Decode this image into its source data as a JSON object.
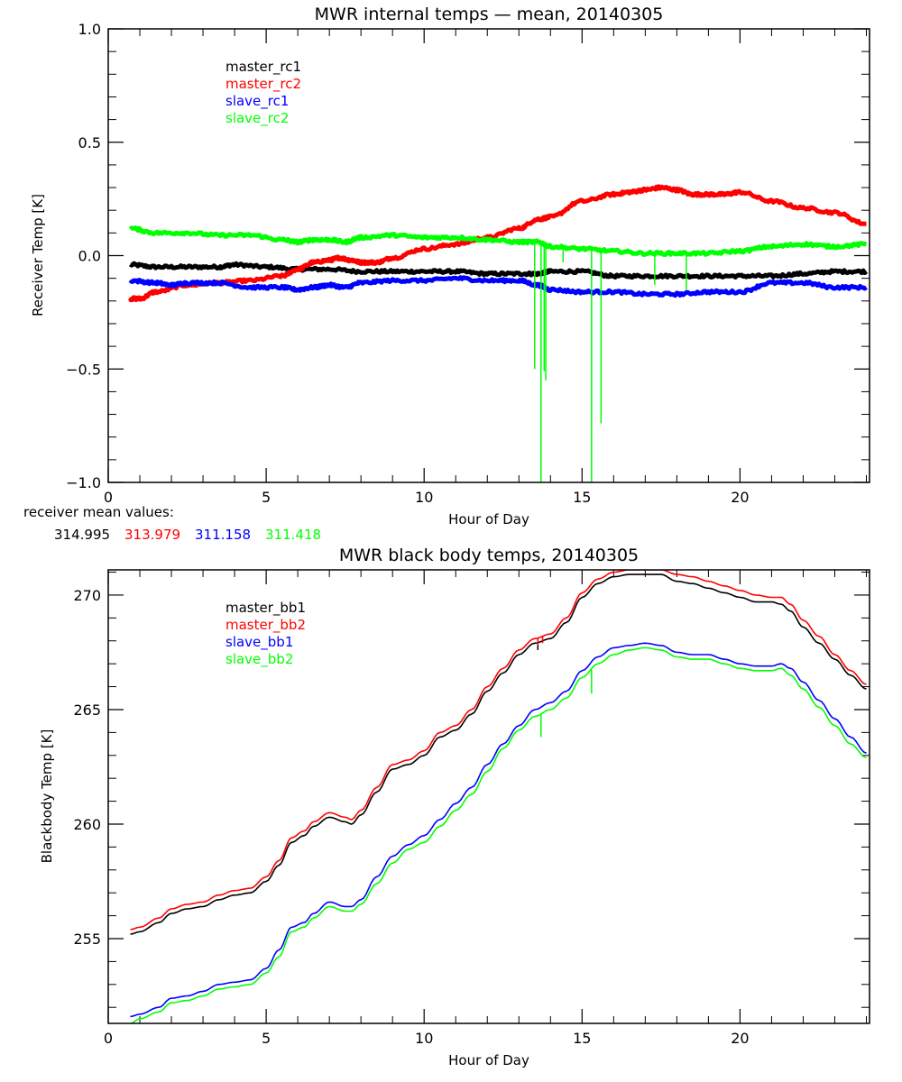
{
  "chart_data": [
    {
      "type": "line",
      "title": "MWR internal temps — mean, 20140305",
      "xlabel": "Hour of Day",
      "ylabel": "Receiver Temp [K]",
      "xlim": [
        0,
        24.1
      ],
      "ylim": [
        -1.0,
        1.0
      ],
      "xticks": [
        0,
        5,
        10,
        15,
        20
      ],
      "xtick_labels": [
        "0",
        "5",
        "10",
        "15",
        "20"
      ],
      "yticks": [
        -1.0,
        -0.5,
        0.0,
        0.5,
        1.0
      ],
      "ytick_labels": [
        "-1.0",
        "-0.5",
        "0.0",
        "0.5",
        "1.0"
      ],
      "x_minor_step": 1,
      "y_minor_step": 0.1,
      "grid": false,
      "legend_position": "top-left",
      "series": [
        {
          "name": "master_rc1",
          "color": "#000000",
          "x": [
            0.7,
            1.5,
            2.5,
            3.5,
            4.0,
            5.0,
            6.0,
            7.0,
            8.0,
            9.0,
            10.0,
            11.0,
            12.0,
            13.0,
            13.6,
            14.0,
            15.0,
            16.0,
            17.0,
            18.0,
            19.0,
            20.0,
            21.0,
            22.0,
            23.0,
            24.0
          ],
          "values": [
            -0.04,
            -0.05,
            -0.05,
            -0.05,
            -0.04,
            -0.05,
            -0.06,
            -0.06,
            -0.07,
            -0.07,
            -0.07,
            -0.07,
            -0.08,
            -0.08,
            -0.08,
            -0.07,
            -0.07,
            -0.09,
            -0.09,
            -0.09,
            -0.09,
            -0.09,
            -0.09,
            -0.08,
            -0.07,
            -0.07
          ]
        },
        {
          "name": "master_rc2",
          "color": "#ff0000",
          "x": [
            0.7,
            1.0,
            1.5,
            2.5,
            3.5,
            4.5,
            5.5,
            6.0,
            6.5,
            7.0,
            7.3,
            7.7,
            8.0,
            8.5,
            9.0,
            10.0,
            11.0,
            12.0,
            13.0,
            13.6,
            14.0,
            15.0,
            16.0,
            16.5,
            17.0,
            17.5,
            18.0,
            18.5,
            19.0,
            19.5,
            20.0,
            21.0,
            22.0,
            23.0,
            24.0
          ],
          "values": [
            -0.19,
            -0.19,
            -0.16,
            -0.13,
            -0.12,
            -0.11,
            -0.09,
            -0.06,
            -0.03,
            -0.02,
            -0.01,
            -0.02,
            -0.03,
            -0.03,
            -0.01,
            0.03,
            0.05,
            0.08,
            0.12,
            0.16,
            0.17,
            0.24,
            0.27,
            0.28,
            0.29,
            0.3,
            0.29,
            0.27,
            0.27,
            0.27,
            0.28,
            0.24,
            0.21,
            0.19,
            0.14
          ]
        },
        {
          "name": "slave_rc1",
          "color": "#0000ff",
          "x": [
            0.7,
            1.5,
            2.0,
            2.5,
            3.5,
            4.5,
            5.5,
            6.0,
            6.5,
            7.0,
            7.5,
            8.0,
            9.0,
            10.0,
            11.0,
            12.0,
            13.0,
            13.6,
            14.0,
            15.0,
            16.0,
            17.0,
            18.0,
            19.0,
            20.0,
            21.0,
            22.0,
            23.0,
            24.0
          ],
          "values": [
            -0.11,
            -0.12,
            -0.13,
            -0.12,
            -0.12,
            -0.14,
            -0.14,
            -0.15,
            -0.14,
            -0.13,
            -0.14,
            -0.12,
            -0.11,
            -0.11,
            -0.1,
            -0.11,
            -0.11,
            -0.13,
            -0.15,
            -0.16,
            -0.16,
            -0.17,
            -0.17,
            -0.16,
            -0.16,
            -0.12,
            -0.12,
            -0.14,
            -0.14
          ]
        },
        {
          "name": "slave_rc2",
          "color": "#00ff00",
          "x": [
            0.7,
            1.5,
            2.5,
            3.5,
            4.5,
            5.5,
            6.0,
            6.5,
            7.0,
            7.5,
            8.0,
            9.0,
            10.0,
            11.0,
            12.0,
            13.0,
            13.6,
            14.0,
            15.0,
            16.0,
            17.0,
            18.0,
            19.0,
            20.0,
            21.0,
            22.0,
            23.0,
            24.0
          ],
          "values": [
            0.12,
            0.1,
            0.1,
            0.09,
            0.09,
            0.07,
            0.06,
            0.07,
            0.07,
            0.06,
            0.08,
            0.09,
            0.08,
            0.08,
            0.07,
            0.06,
            0.06,
            0.04,
            0.03,
            0.02,
            0.01,
            0.01,
            0.01,
            0.02,
            0.04,
            0.05,
            0.04,
            0.05
          ],
          "spikes": [
            {
              "x": 13.5,
              "to": -0.5
            },
            {
              "x": 13.7,
              "to": -1.0
            },
            {
              "x": 13.8,
              "to": -0.51
            },
            {
              "x": 13.85,
              "to": -0.55
            },
            {
              "x": 14.4,
              "to": -0.03
            },
            {
              "x": 15.3,
              "to": -1.0
            },
            {
              "x": 15.6,
              "to": -0.74
            },
            {
              "x": 17.3,
              "to": -0.13
            },
            {
              "x": 18.3,
              "to": -0.15
            }
          ]
        }
      ],
      "footer": {
        "label": "receiver mean values:",
        "values": [
          {
            "text": "314.995",
            "color": "#000000"
          },
          {
            "text": "313.979",
            "color": "#ff0000"
          },
          {
            "text": "311.158",
            "color": "#0000ff"
          },
          {
            "text": "311.418",
            "color": "#00ff00"
          }
        ]
      }
    },
    {
      "type": "line",
      "title": "MWR black body temps, 20140305",
      "xlabel": "Hour of Day",
      "ylabel": "Blackbody Temp [K]",
      "xlim": [
        0,
        24.1
      ],
      "ylim": [
        251.3,
        271.1
      ],
      "xticks": [
        0,
        5,
        10,
        15,
        20
      ],
      "xtick_labels": [
        "0",
        "5",
        "10",
        "15",
        "20"
      ],
      "yticks": [
        255,
        260,
        265,
        270
      ],
      "ytick_labels": [
        "255",
        "260",
        "265",
        "270"
      ],
      "x_minor_step": 1,
      "y_minor_step": 1,
      "grid": false,
      "legend_position": "top-left",
      "series": [
        {
          "name": "master_bb1",
          "color": "#000000",
          "x": [
            0.7,
            1.0,
            1.6,
            2.0,
            2.5,
            3.0,
            3.5,
            4.0,
            4.5,
            5.0,
            5.4,
            5.8,
            6.2,
            6.5,
            7.0,
            7.5,
            7.7,
            8.0,
            8.5,
            9.0,
            9.5,
            10.0,
            10.5,
            11.0,
            11.5,
            12.0,
            12.5,
            13.0,
            13.5,
            14.0,
            14.5,
            15.0,
            15.5,
            16.0,
            16.5,
            17.0,
            17.5,
            18.0,
            18.5,
            19.0,
            19.5,
            20.0,
            20.5,
            21.0,
            21.3,
            21.6,
            22.0,
            22.5,
            23.0,
            23.5,
            24.0
          ],
          "values": [
            255.2,
            255.3,
            255.7,
            256.1,
            256.3,
            256.4,
            256.7,
            256.9,
            257.0,
            257.5,
            258.2,
            259.2,
            259.5,
            259.9,
            260.3,
            260.1,
            260.0,
            260.4,
            261.4,
            262.4,
            262.6,
            263.0,
            263.8,
            264.1,
            264.8,
            265.8,
            266.6,
            267.4,
            267.9,
            268.1,
            268.8,
            269.9,
            270.5,
            270.8,
            270.9,
            270.9,
            270.9,
            270.6,
            270.5,
            270.3,
            270.1,
            269.9,
            269.7,
            269.7,
            269.6,
            269.3,
            268.6,
            267.9,
            267.2,
            266.5,
            265.9
          ],
          "spikes": [
            {
              "x": 13.6,
              "to": 267.6
            }
          ]
        },
        {
          "name": "master_bb2",
          "color": "#ff0000",
          "x": [
            0.7,
            1.0,
            1.6,
            2.0,
            2.5,
            3.0,
            3.5,
            4.0,
            4.5,
            5.0,
            5.4,
            5.8,
            6.2,
            6.5,
            7.0,
            7.5,
            7.7,
            8.0,
            8.5,
            9.0,
            9.5,
            10.0,
            10.5,
            11.0,
            11.5,
            12.0,
            12.5,
            13.0,
            13.5,
            14.0,
            14.5,
            15.0,
            15.5,
            16.0,
            16.5,
            17.0,
            17.5,
            18.0,
            18.5,
            19.0,
            19.5,
            20.0,
            20.5,
            21.0,
            21.3,
            21.6,
            22.0,
            22.5,
            23.0,
            23.5,
            24.0
          ],
          "values": [
            255.4,
            255.5,
            255.9,
            256.3,
            256.5,
            256.6,
            256.9,
            257.1,
            257.2,
            257.7,
            258.4,
            259.4,
            259.7,
            260.1,
            260.5,
            260.3,
            260.2,
            260.6,
            261.6,
            262.6,
            262.8,
            263.2,
            264.0,
            264.3,
            265.0,
            266.0,
            266.8,
            267.6,
            268.1,
            268.3,
            269.0,
            270.1,
            270.7,
            271.0,
            271.1,
            271.1,
            271.1,
            270.9,
            270.8,
            270.6,
            270.4,
            270.2,
            270.0,
            269.9,
            269.9,
            269.6,
            268.9,
            268.2,
            267.4,
            266.7,
            266.1
          ],
          "spikes": [
            {
              "x": 13.6,
              "to": 267.8
            },
            {
              "x": 13.75,
              "to": 267.9
            }
          ]
        },
        {
          "name": "slave_bb1",
          "color": "#0000ff",
          "x": [
            0.7,
            1.0,
            1.6,
            2.0,
            2.5,
            3.0,
            3.5,
            4.0,
            4.5,
            5.0,
            5.4,
            5.8,
            6.2,
            6.5,
            7.0,
            7.5,
            7.7,
            8.0,
            8.5,
            9.0,
            9.5,
            10.0,
            10.5,
            11.0,
            11.5,
            12.0,
            12.5,
            13.0,
            13.5,
            14.0,
            14.5,
            15.0,
            15.5,
            16.0,
            16.5,
            17.0,
            17.5,
            18.0,
            18.5,
            19.0,
            19.5,
            20.0,
            20.5,
            21.0,
            21.3,
            21.6,
            22.0,
            22.5,
            23.0,
            23.5,
            24.0
          ],
          "values": [
            251.6,
            251.7,
            252.0,
            252.4,
            252.5,
            252.7,
            253.0,
            253.1,
            253.2,
            253.7,
            254.5,
            255.5,
            255.7,
            256.1,
            256.6,
            256.4,
            256.4,
            256.7,
            257.7,
            258.6,
            259.1,
            259.5,
            260.2,
            260.9,
            261.6,
            262.6,
            263.5,
            264.3,
            265.0,
            265.3,
            265.8,
            266.7,
            267.3,
            267.7,
            267.8,
            267.9,
            267.8,
            267.5,
            267.4,
            267.4,
            267.2,
            267.0,
            266.9,
            266.9,
            267.0,
            266.8,
            266.2,
            265.4,
            264.6,
            263.8,
            263.1
          ]
        },
        {
          "name": "slave_bb2",
          "color": "#00ff00",
          "x": [
            0.7,
            1.0,
            1.6,
            2.0,
            2.5,
            3.0,
            3.5,
            4.0,
            4.5,
            5.0,
            5.4,
            5.8,
            6.2,
            6.5,
            7.0,
            7.5,
            7.7,
            8.0,
            8.5,
            9.0,
            9.5,
            10.0,
            10.5,
            11.0,
            11.5,
            12.0,
            12.5,
            13.0,
            13.5,
            14.0,
            14.5,
            15.0,
            15.5,
            16.0,
            16.5,
            17.0,
            17.5,
            18.0,
            18.5,
            19.0,
            19.5,
            20.0,
            20.5,
            21.0,
            21.3,
            21.6,
            22.0,
            22.5,
            23.0,
            23.5,
            24.0
          ],
          "values": [
            251.3,
            251.5,
            251.8,
            252.2,
            252.3,
            252.5,
            252.8,
            252.9,
            253.0,
            253.5,
            254.2,
            255.3,
            255.5,
            255.9,
            256.4,
            256.2,
            256.2,
            256.5,
            257.4,
            258.3,
            258.9,
            259.2,
            259.9,
            260.6,
            261.3,
            262.3,
            263.3,
            264.1,
            264.7,
            265.0,
            265.5,
            266.4,
            267.0,
            267.4,
            267.6,
            267.7,
            267.6,
            267.3,
            267.2,
            267.2,
            267.0,
            266.8,
            266.7,
            266.7,
            266.8,
            266.5,
            265.9,
            265.1,
            264.3,
            263.5,
            262.9
          ],
          "spikes": [
            {
              "x": 13.7,
              "to": 263.8
            },
            {
              "x": 15.3,
              "to": 265.7
            }
          ]
        }
      ]
    }
  ]
}
